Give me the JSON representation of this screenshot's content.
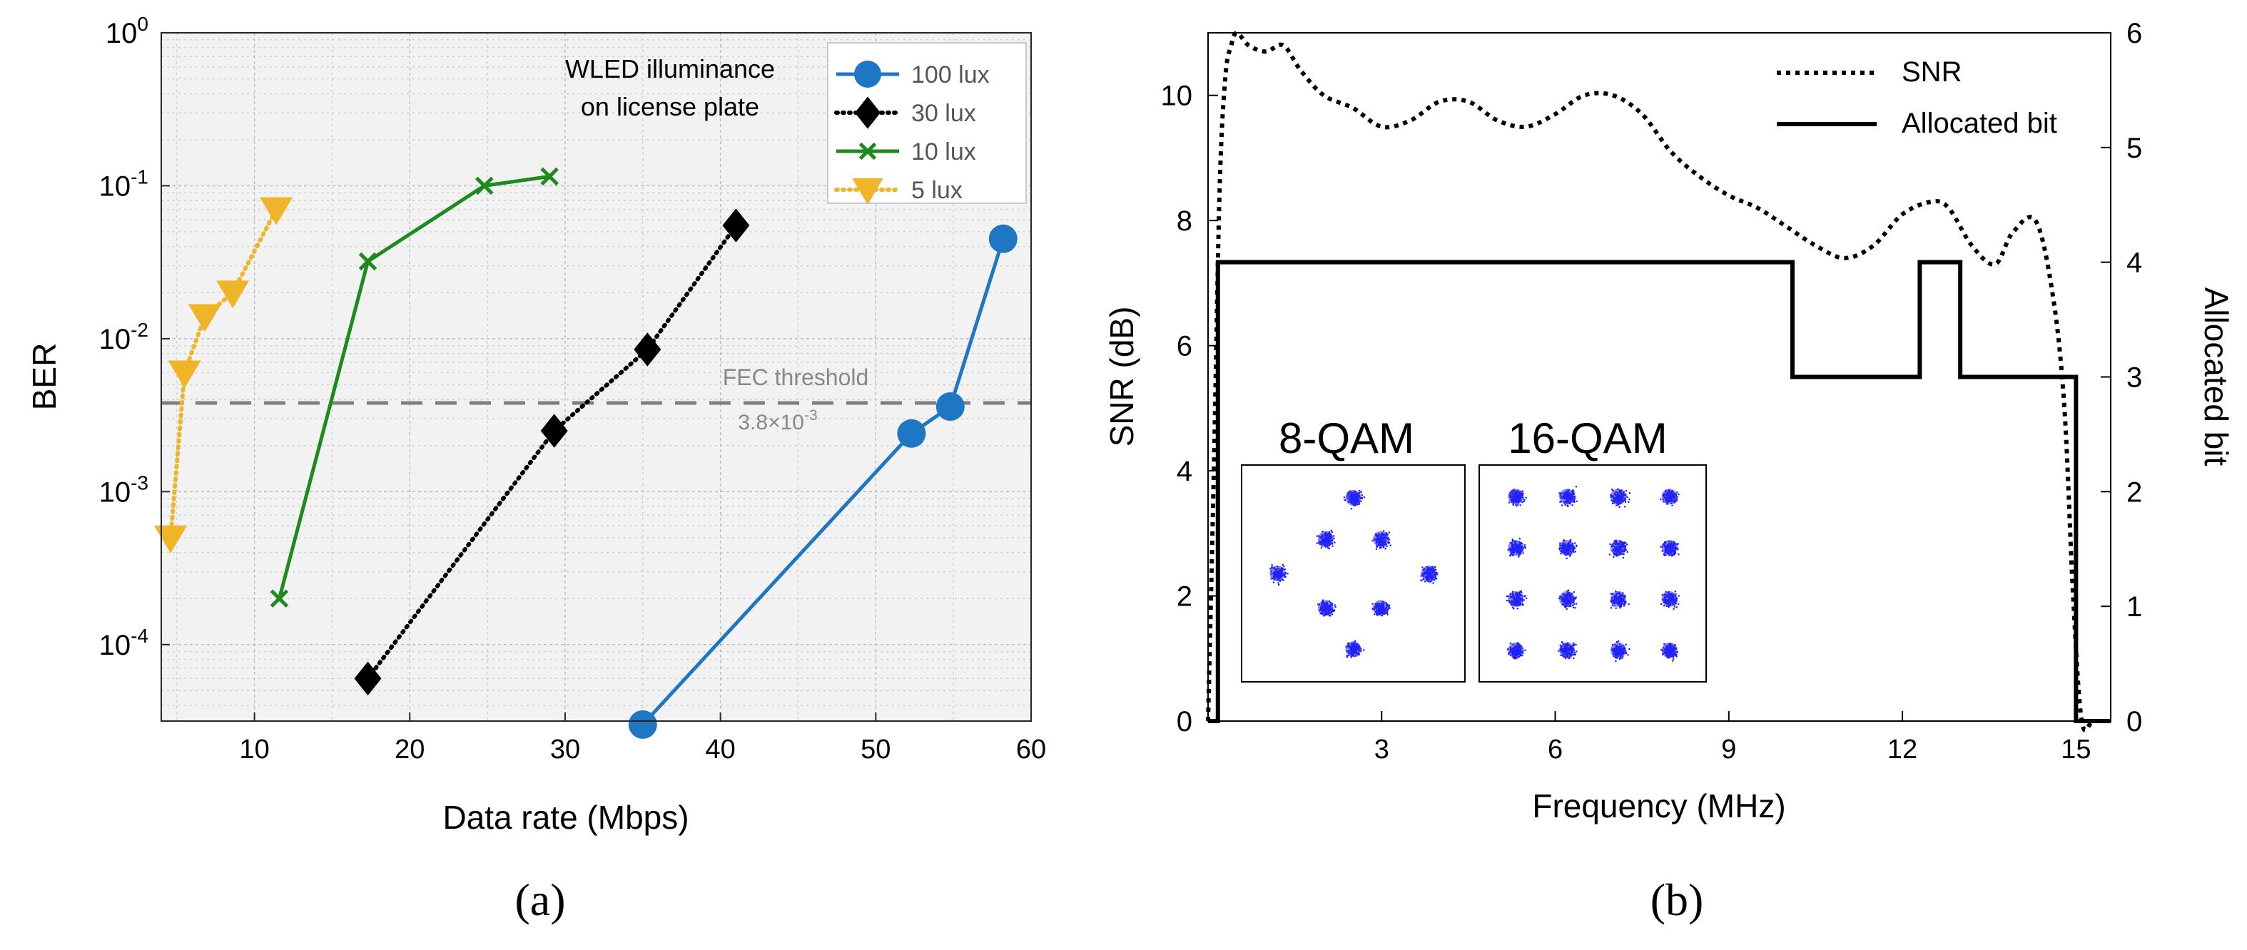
{
  "captions": {
    "a": "(a)",
    "b": "(b)"
  },
  "chart_data": [
    {
      "type": "line",
      "panel": "a",
      "xlabel": "Data rate (Mbps)",
      "ylabel": "BER",
      "xlim": [
        4,
        60
      ],
      "ylim_log10": [
        -4.5,
        0
      ],
      "xticks": [
        10,
        20,
        30,
        40,
        50,
        60
      ],
      "yticks": [
        {
          "exp": 0,
          "base": "10",
          "sup": "0"
        },
        {
          "exp": -1,
          "base": "10",
          "sup": "-1"
        },
        {
          "exp": -2,
          "base": "10",
          "sup": "-2"
        },
        {
          "exp": -3,
          "base": "10",
          "sup": "-3"
        },
        {
          "exp": -4,
          "base": "10",
          "sup": "-4"
        }
      ],
      "grid": true,
      "legend_title": [
        "WLED illuminance",
        "on license plate"
      ],
      "legend_position": "top-right",
      "series": [
        {
          "name": "100 lux",
          "color": "#1f77c4",
          "marker": "circle",
          "dash": "solid",
          "x": [
            35.0,
            52.3,
            54.8,
            58.2
          ],
          "y": [
            3e-05,
            0.0024,
            0.0036,
            0.045
          ]
        },
        {
          "name": "30 lux",
          "color": "#000000",
          "marker": "diamond",
          "dash": "dotted",
          "x": [
            17.3,
            29.3,
            35.3,
            41.0
          ],
          "y": [
            6e-05,
            0.0025,
            0.0085,
            0.055
          ]
        },
        {
          "name": "10 lux",
          "color": "#1e8a1e",
          "marker": "x",
          "dash": "solid",
          "x": [
            11.6,
            17.3,
            24.8,
            29.0
          ],
          "y": [
            0.0002,
            0.032,
            0.1,
            0.115
          ]
        },
        {
          "name": "5 lux",
          "color": "#f0b429",
          "marker": "triangle-down",
          "dash": "dotted",
          "x": [
            4.6,
            5.5,
            6.8,
            8.6,
            11.4
          ],
          "y": [
            0.0005,
            0.006,
            0.014,
            0.02,
            0.07
          ]
        }
      ],
      "annotations": {
        "threshold_label": "FEC threshold",
        "threshold_value_base": "3.8×10",
        "threshold_value_sup": "-3",
        "threshold_y": 0.0038
      }
    },
    {
      "type": "line",
      "panel": "b",
      "xlabel": "Frequency (MHz)",
      "ylabel_left": "SNR (dB)",
      "ylabel_right": "Allocated bit",
      "xlim": [
        0,
        15.6
      ],
      "ylim_left": [
        0,
        11
      ],
      "ylim_right": [
        0,
        6
      ],
      "xticks": [
        3,
        6,
        9,
        12,
        15
      ],
      "yticks_left": [
        0,
        2,
        4,
        6,
        8,
        10
      ],
      "yticks_right": [
        0,
        1,
        2,
        3,
        4,
        5,
        6
      ],
      "legend_position": "top-right",
      "series": [
        {
          "name": "SNR",
          "axis": "left",
          "style": "dotted",
          "color": "#000000",
          "x": [
            0.0,
            0.1,
            0.2,
            0.3,
            0.4,
            0.5,
            0.7,
            1.0,
            1.3,
            1.6,
            2.0,
            2.5,
            3.0,
            3.5,
            4.0,
            4.5,
            5.0,
            5.5,
            6.0,
            6.5,
            7.0,
            7.5,
            8.0,
            8.5,
            9.0,
            9.5,
            10.0,
            10.5,
            11.0,
            11.5,
            12.0,
            12.5,
            12.8,
            13.2,
            13.6,
            13.9,
            14.3,
            14.6,
            14.8,
            14.95,
            15.1,
            15.3,
            15.6
          ],
          "y": [
            0.0,
            4.0,
            8.5,
            10.3,
            10.8,
            11.0,
            10.8,
            10.7,
            10.8,
            10.4,
            10.0,
            9.8,
            9.5,
            9.6,
            9.9,
            9.9,
            9.6,
            9.5,
            9.7,
            10.0,
            10.0,
            9.7,
            9.1,
            8.7,
            8.4,
            8.2,
            7.9,
            7.6,
            7.4,
            7.6,
            8.1,
            8.3,
            8.2,
            7.6,
            7.3,
            7.8,
            8.0,
            6.8,
            5.0,
            2.0,
            0.0,
            0.0,
            0.0
          ]
        },
        {
          "name": "Allocated bit",
          "axis": "right",
          "style": "solid",
          "color": "#000000",
          "x": [
            0.0,
            0.17,
            0.17,
            10.1,
            10.1,
            12.3,
            12.3,
            13.0,
            13.0,
            15.0,
            15.0,
            15.6
          ],
          "y": [
            0,
            0,
            4,
            4,
            3,
            3,
            4,
            4,
            3,
            3,
            0,
            0
          ]
        }
      ],
      "insets": [
        {
          "title": "8-QAM",
          "points": [
            [
              -0.8,
              1.0
            ],
            [
              0.8,
              1.0
            ],
            [
              -0.8,
              -1.0
            ],
            [
              0.8,
              -1.0
            ],
            [
              -2.2,
              0.0
            ],
            [
              2.2,
              0.0
            ],
            [
              0.0,
              2.2
            ],
            [
              0.0,
              -2.2
            ]
          ]
        },
        {
          "title": "16-QAM",
          "points": [
            [
              -3,
              3
            ],
            [
              -1,
              3
            ],
            [
              1,
              3
            ],
            [
              3,
              3
            ],
            [
              -3,
              1
            ],
            [
              -1,
              1
            ],
            [
              1,
              1
            ],
            [
              3,
              1
            ],
            [
              -3,
              -1
            ],
            [
              -1,
              -1
            ],
            [
              1,
              -1
            ],
            [
              3,
              -1
            ],
            [
              -3,
              -3
            ],
            [
              -1,
              -3
            ],
            [
              1,
              -3
            ],
            [
              3,
              -3
            ]
          ]
        }
      ]
    }
  ]
}
